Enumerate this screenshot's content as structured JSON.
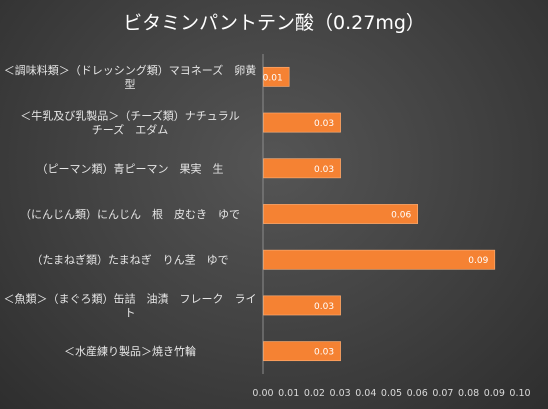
{
  "chart_data": {
    "type": "bar",
    "orientation": "horizontal",
    "title": "ビタミンパントテン酸（0.27mg）",
    "categories": [
      [
        "＜調味料類＞（ドレッシング類）マヨネーズ　卵黄",
        "型"
      ],
      [
        "＜牛乳及び乳製品＞（チーズ類）ナチュラル",
        "チーズ　エダム"
      ],
      [
        "（ピーマン類）青ピーマン　果実　生"
      ],
      [
        "（にんじん類）にんじん　根　皮むき　ゆで"
      ],
      [
        "（たまねぎ類）たまねぎ　りん茎　ゆで"
      ],
      [
        "＜魚類＞（まぐろ類）缶詰　油漬　フレーク　ライ",
        "ト"
      ],
      [
        "＜水産練り製品＞焼き竹輪"
      ]
    ],
    "values": [
      0.01,
      0.03,
      0.03,
      0.06,
      0.09,
      0.03,
      0.03
    ],
    "data_labels": [
      "0.01",
      "0.03",
      "0.03",
      "0.06",
      "0.09",
      "0.03",
      "0.03"
    ],
    "xlim": [
      0,
      0.1
    ],
    "xticks": [
      "0.00",
      "0.01",
      "0.02",
      "0.03",
      "0.04",
      "0.05",
      "0.06",
      "0.07",
      "0.08",
      "0.09",
      "0.10"
    ],
    "grid": false,
    "colors": {
      "bar": "#f58233",
      "bar_edge": "#ffb27a",
      "axis": "#8c8c8c",
      "text": "#e6e6e6"
    }
  }
}
